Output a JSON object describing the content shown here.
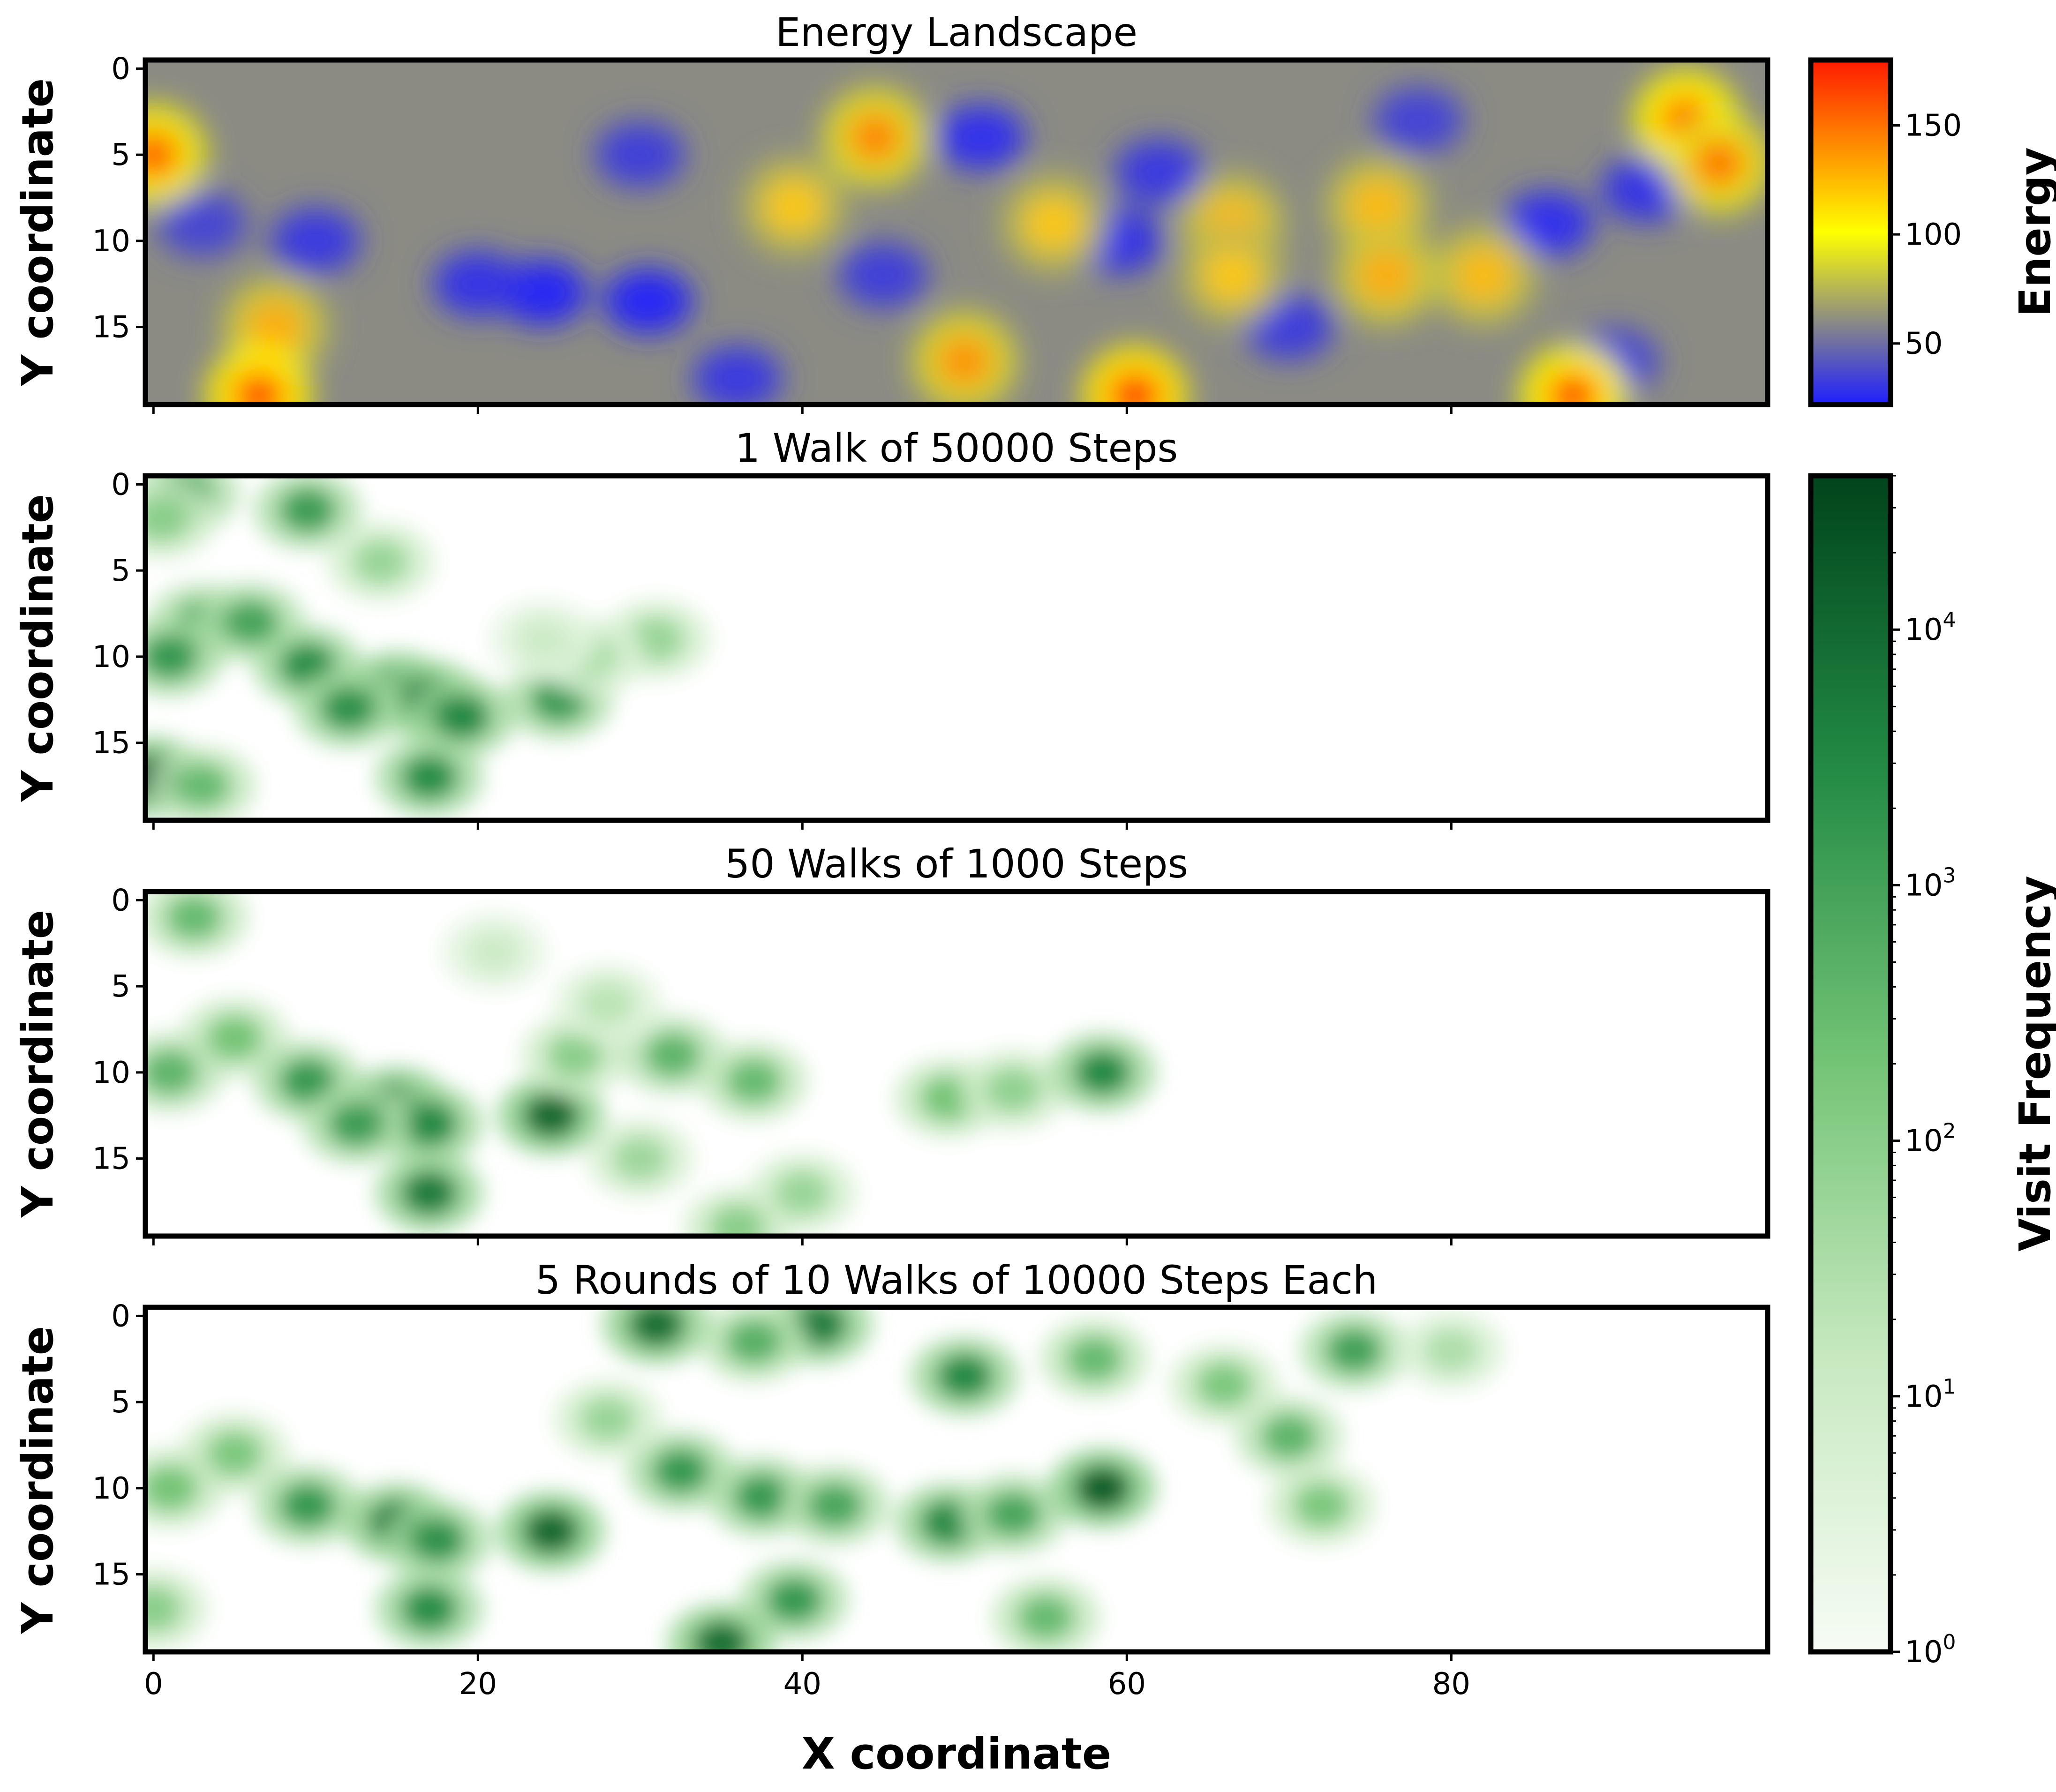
{
  "figure": {
    "xlabel": "X coordinate",
    "x_ticks": [
      0,
      20,
      40,
      60,
      80
    ]
  },
  "chart_data": [
    {
      "type": "heatmap",
      "title": "Energy Landscape",
      "xlabel": "",
      "ylabel": "Y coordinate",
      "xlim": [
        0,
        99
      ],
      "ylim": [
        19,
        0
      ],
      "y_ticks": [
        0,
        5,
        10,
        15
      ],
      "colorbar": {
        "label": "Energy",
        "range": [
          22,
          180
        ],
        "ticks": [
          50,
          100,
          150
        ],
        "colors": [
          "#1f1fff",
          "#ffff00",
          "#ff1a00"
        ]
      },
      "hotspots": [
        {
          "x": 0,
          "y": 5,
          "value": 160
        },
        {
          "x": 7.5,
          "y": 15,
          "value": 130
        },
        {
          "x": 6.5,
          "y": 19,
          "value": 170
        },
        {
          "x": 39.5,
          "y": 8,
          "value": 120
        },
        {
          "x": 44.5,
          "y": 4,
          "value": 145
        },
        {
          "x": 55.5,
          "y": 9,
          "value": 120
        },
        {
          "x": 50,
          "y": 17,
          "value": 140
        },
        {
          "x": 60.5,
          "y": 19,
          "value": 175
        },
        {
          "x": 66.5,
          "y": 9,
          "value": 125
        },
        {
          "x": 66.5,
          "y": 12,
          "value": 120
        },
        {
          "x": 75.5,
          "y": 8,
          "value": 125
        },
        {
          "x": 76,
          "y": 12,
          "value": 130
        },
        {
          "x": 82,
          "y": 12,
          "value": 125
        },
        {
          "x": 87.5,
          "y": 19,
          "value": 165
        },
        {
          "x": 94.5,
          "y": 3,
          "value": 165
        },
        {
          "x": 96.5,
          "y": 5.5,
          "value": 150
        }
      ],
      "lowspots": [
        {
          "x": 24,
          "y": 13,
          "value": 25
        },
        {
          "x": 20,
          "y": 12.5,
          "value": 30
        },
        {
          "x": 30.5,
          "y": 13.5,
          "value": 25
        },
        {
          "x": 51,
          "y": 4,
          "value": 28
        },
        {
          "x": 59.5,
          "y": 10,
          "value": 30
        },
        {
          "x": 62,
          "y": 6,
          "value": 32
        },
        {
          "x": 86,
          "y": 9,
          "value": 28
        },
        {
          "x": 92,
          "y": 7,
          "value": 30
        },
        {
          "x": 10,
          "y": 10,
          "value": 32
        },
        {
          "x": 30,
          "y": 5,
          "value": 34
        },
        {
          "x": 36,
          "y": 18,
          "value": 32
        },
        {
          "x": 45,
          "y": 12,
          "value": 34
        },
        {
          "x": 90,
          "y": 17,
          "value": 35
        },
        {
          "x": 78,
          "y": 3,
          "value": 35
        },
        {
          "x": 70,
          "y": 15,
          "value": 33
        },
        {
          "x": 3,
          "y": 9,
          "value": 36
        }
      ]
    },
    {
      "type": "heatmap",
      "title": "1 Walk of 50000 Steps",
      "xlabel": "",
      "ylabel": "Y coordinate",
      "xlim": [
        0,
        99
      ],
      "ylim": [
        19,
        0
      ],
      "y_ticks": [
        0,
        5,
        10,
        15
      ],
      "log_color": true,
      "visited_extent_x": [
        0,
        36
      ],
      "clusters": [
        {
          "x": 2,
          "y": 0.5,
          "value": 800
        },
        {
          "x": 9.5,
          "y": 1.5,
          "value": 1200
        },
        {
          "x": 0.5,
          "y": 2,
          "value": 100
        },
        {
          "x": 14,
          "y": 4.5,
          "value": 60
        },
        {
          "x": 3,
          "y": 8,
          "value": 600
        },
        {
          "x": 6,
          "y": 8,
          "value": 900
        },
        {
          "x": 1,
          "y": 10,
          "value": 1500
        },
        {
          "x": 9.5,
          "y": 10.5,
          "value": 2500
        },
        {
          "x": 15,
          "y": 12,
          "value": 10000
        },
        {
          "x": 17,
          "y": 12.5,
          "value": 5000
        },
        {
          "x": 19,
          "y": 13.5,
          "value": 3000
        },
        {
          "x": 12,
          "y": 13,
          "value": 2000
        },
        {
          "x": 25,
          "y": 12.5,
          "value": 1500
        },
        {
          "x": 31,
          "y": 9,
          "value": 60
        },
        {
          "x": 27,
          "y": 10,
          "value": 30
        },
        {
          "x": 17,
          "y": 17,
          "value": 2500
        },
        {
          "x": 0,
          "y": 17,
          "value": 20000
        },
        {
          "x": 3,
          "y": 17.5,
          "value": 300
        },
        {
          "x": 24,
          "y": 9,
          "value": 10
        }
      ]
    },
    {
      "type": "heatmap",
      "title": "50 Walks of 1000 Steps",
      "xlabel": "",
      "ylabel": "Y coordinate",
      "xlim": [
        0,
        99
      ],
      "ylim": [
        19,
        0
      ],
      "y_ticks": [
        0,
        5,
        10,
        15
      ],
      "log_color": true,
      "visited_extent_x": [
        0,
        63
      ],
      "clusters": [
        {
          "x": 2.5,
          "y": 1,
          "value": 300
        },
        {
          "x": 5,
          "y": 8,
          "value": 200
        },
        {
          "x": 1,
          "y": 10,
          "value": 400
        },
        {
          "x": 9.5,
          "y": 10.5,
          "value": 1500
        },
        {
          "x": 15,
          "y": 12,
          "value": 15000
        },
        {
          "x": 17,
          "y": 13,
          "value": 3000
        },
        {
          "x": 12.5,
          "y": 13,
          "value": 1200
        },
        {
          "x": 17,
          "y": 17,
          "value": 5000
        },
        {
          "x": 24.5,
          "y": 12.5,
          "value": 10000
        },
        {
          "x": 26,
          "y": 9,
          "value": 100
        },
        {
          "x": 32,
          "y": 9,
          "value": 400
        },
        {
          "x": 37,
          "y": 10.5,
          "value": 300
        },
        {
          "x": 49,
          "y": 11.5,
          "value": 200
        },
        {
          "x": 53,
          "y": 11,
          "value": 80
        },
        {
          "x": 58.5,
          "y": 10,
          "value": 3000
        },
        {
          "x": 40,
          "y": 17,
          "value": 60
        },
        {
          "x": 36,
          "y": 19,
          "value": 100
        },
        {
          "x": 30,
          "y": 15,
          "value": 50
        },
        {
          "x": 21,
          "y": 3,
          "value": 10
        },
        {
          "x": 28,
          "y": 6,
          "value": 20
        }
      ]
    },
    {
      "type": "heatmap",
      "title": "5 Rounds of 10 Walks of 10000 Steps Each",
      "xlabel": "X coordinate",
      "ylabel": "Y coordinate",
      "xlim": [
        0,
        99
      ],
      "ylim": [
        19,
        0
      ],
      "y_ticks": [
        0,
        5,
        10,
        15
      ],
      "log_color": true,
      "visited_extent_x": [
        0,
        81
      ],
      "clusters": [
        {
          "x": 31,
          "y": 0.5,
          "value": 8000
        },
        {
          "x": 41,
          "y": 0.5,
          "value": 5000
        },
        {
          "x": 37,
          "y": 1.5,
          "value": 500
        },
        {
          "x": 50,
          "y": 3.5,
          "value": 3000
        },
        {
          "x": 58,
          "y": 2.5,
          "value": 300
        },
        {
          "x": 74,
          "y": 2,
          "value": 1000
        },
        {
          "x": 70,
          "y": 7,
          "value": 400
        },
        {
          "x": 66,
          "y": 4,
          "value": 150
        },
        {
          "x": 5,
          "y": 8,
          "value": 150
        },
        {
          "x": 1,
          "y": 10,
          "value": 200
        },
        {
          "x": 9.5,
          "y": 11,
          "value": 1500
        },
        {
          "x": 15,
          "y": 12,
          "value": 6000
        },
        {
          "x": 17.5,
          "y": 13,
          "value": 2000
        },
        {
          "x": 24.5,
          "y": 12.5,
          "value": 10000
        },
        {
          "x": 32.5,
          "y": 9,
          "value": 1500
        },
        {
          "x": 37.5,
          "y": 10.5,
          "value": 1500
        },
        {
          "x": 42,
          "y": 11,
          "value": 800
        },
        {
          "x": 49,
          "y": 12,
          "value": 3000
        },
        {
          "x": 53,
          "y": 11.5,
          "value": 800
        },
        {
          "x": 58.5,
          "y": 10,
          "value": 15000
        },
        {
          "x": 39.5,
          "y": 16.5,
          "value": 1500
        },
        {
          "x": 35,
          "y": 19,
          "value": 8000
        },
        {
          "x": 17,
          "y": 17,
          "value": 2500
        },
        {
          "x": 55,
          "y": 17.5,
          "value": 300
        },
        {
          "x": 72,
          "y": 11,
          "value": 150
        },
        {
          "x": 0,
          "y": 17,
          "value": 100
        },
        {
          "x": 28,
          "y": 6,
          "value": 60
        },
        {
          "x": 80,
          "y": 2,
          "value": 30
        }
      ]
    }
  ],
  "colorbars": {
    "energy": {
      "label": "Energy",
      "tick_labels": [
        "50",
        "100",
        "150"
      ]
    },
    "visits": {
      "label": "Visit Frequency",
      "scale": "log",
      "range": [
        1,
        40000
      ],
      "colors": [
        "#f7fcf5",
        "#c7e9c0",
        "#74c476",
        "#238b45",
        "#00441b"
      ],
      "ticks": [
        {
          "base": "10",
          "exp": "0",
          "value": 1
        },
        {
          "base": "10",
          "exp": "1",
          "value": 10
        },
        {
          "base": "10",
          "exp": "2",
          "value": 100
        },
        {
          "base": "10",
          "exp": "3",
          "value": 1000
        },
        {
          "base": "10",
          "exp": "4",
          "value": 10000
        }
      ]
    }
  }
}
